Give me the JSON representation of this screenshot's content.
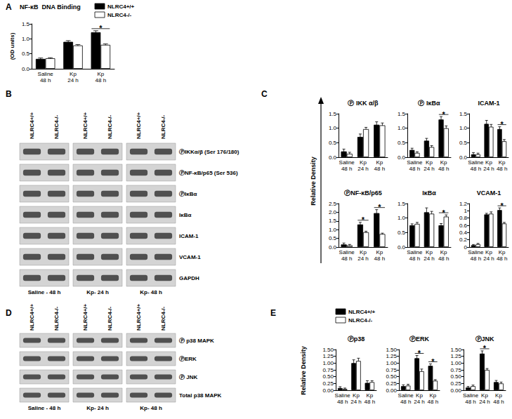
{
  "chart_data": [
    {
      "type": "bar",
      "panel": "A",
      "title": "NF-κB  DNA Binding",
      "ylabel": "(OD units)",
      "categories": [
        "Saline\n48 h",
        "Kp\n24 h",
        "Kp\n48 h"
      ],
      "series": [
        {
          "name": "NLRC4+/+",
          "color": "#000000",
          "values": [
            0.33,
            0.9,
            1.22
          ],
          "errors": [
            0.03,
            0.04,
            0.05
          ]
        },
        {
          "name": "NLRC4-/-",
          "color": "#ffffff",
          "values": [
            0.35,
            0.78,
            0.8
          ],
          "errors": [
            0.02,
            0.03,
            0.03
          ]
        }
      ],
      "ylim": [
        0,
        1.5
      ],
      "yticks": [
        {
          "value": 0,
          "label": "0.0"
        },
        0.5,
        {
          "value": 1,
          "label": "1.0"
        },
        1.5
      ],
      "grid": false,
      "legend": "upper right",
      "annotations": [
        {
          "category": "Kp\n48 h",
          "text": "*"
        }
      ]
    },
    {
      "type": "bar",
      "panel": "C",
      "title": "Ⓟ IKK α/β",
      "categories": [
        "Saline\n48 h",
        "Kp\n24 h",
        "Kp\n48 h"
      ],
      "series": [
        {
          "name": "NLRC4+/+",
          "color": "#000000",
          "values": [
            0.2,
            0.7,
            1.12
          ],
          "errors": [
            0.08,
            0.1,
            0.1
          ]
        },
        {
          "name": "NLRC4-/-",
          "color": "#ffffff",
          "values": [
            0.12,
            0.97,
            1.1
          ],
          "errors": [
            0.05,
            0.06,
            0.08
          ]
        }
      ],
      "ylim": [
        0,
        1.5
      ],
      "yticks": [
        {
          "value": 0,
          "label": "0.0"
        },
        0.5,
        {
          "value": 1,
          "label": "1.0"
        },
        1.5
      ],
      "grid": false,
      "annotations": []
    },
    {
      "type": "bar",
      "panel": "C",
      "title": "Ⓟ IκBα",
      "categories": [
        "Saline\n48 h",
        "Kp\n24 h",
        "Kp\n48 h"
      ],
      "series": [
        {
          "name": "NLRC4+/+",
          "color": "#000000",
          "values": [
            0.25,
            0.57,
            1.3
          ],
          "errors": [
            0.06,
            0.08,
            0.1
          ]
        },
        {
          "name": "NLRC4-/-",
          "color": "#ffffff",
          "values": [
            0.15,
            0.35,
            1.0
          ],
          "errors": [
            0.04,
            0.05,
            0.08
          ]
        }
      ],
      "ylim": [
        0,
        1.5
      ],
      "yticks": [
        {
          "value": 0,
          "label": "0.0"
        },
        0.5,
        {
          "value": 1,
          "label": "1.0"
        },
        1.5
      ],
      "grid": false,
      "annotations": [
        {
          "category": "Kp\n48 h",
          "text": "*"
        }
      ]
    },
    {
      "type": "bar",
      "panel": "C",
      "title": "ICAM-1",
      "categories": [
        "Saline\n48 h",
        "Kp\n24 h",
        "Kp\n48 h"
      ],
      "series": [
        {
          "name": "NLRC4+/+",
          "color": "#000000",
          "values": [
            0.1,
            1.15,
            0.97
          ],
          "errors": [
            0.06,
            0.12,
            0.08
          ]
        },
        {
          "name": "NLRC4-/-",
          "color": "#ffffff",
          "values": [
            0.1,
            1.05,
            0.55
          ],
          "errors": [
            0.04,
            0.08,
            0.06
          ]
        }
      ],
      "ylim": [
        0,
        1.5
      ],
      "yticks": [
        {
          "value": 0,
          "label": "0.0"
        },
        0.5,
        {
          "value": 1,
          "label": "1.0"
        },
        1.5
      ],
      "grid": false,
      "annotations": [
        {
          "category": "Kp\n48 h",
          "text": "*"
        }
      ]
    },
    {
      "type": "bar",
      "panel": "C",
      "title": "ⓅNF-κB/p65",
      "categories": [
        "Saline\n48 h",
        "Kp\n24 h",
        "Kp\n48 h"
      ],
      "series": [
        {
          "name": "NLRC4+/+",
          "color": "#000000",
          "values": [
            0.15,
            1.3,
            1.95
          ],
          "errors": [
            0.08,
            0.12,
            0.2
          ]
        },
        {
          "name": "NLRC4-/-",
          "color": "#ffffff",
          "values": [
            0.1,
            0.85,
            0.75
          ],
          "errors": [
            0.05,
            0.06,
            0.05
          ]
        }
      ],
      "ylim": [
        0,
        2.5
      ],
      "yticks": [
        {
          "value": 0,
          "label": "0.0"
        },
        0.5,
        {
          "value": 1,
          "label": "1.0"
        },
        1.5,
        {
          "value": 2,
          "label": "2.0"
        },
        2.5
      ],
      "grid": false,
      "annotations": [
        {
          "category": "Kp\n24 h",
          "text": "*"
        },
        {
          "category": "Kp\n48 h",
          "text": "*"
        }
      ]
    },
    {
      "type": "bar",
      "panel": "C",
      "title": "IκBα",
      "categories": [
        "Saline\n48 h",
        "Kp\n24 h",
        "Kp\n48 h"
      ],
      "series": [
        {
          "name": "NLRC4+/+",
          "color": "#000000",
          "values": [
            0.75,
            1.2,
            0.75
          ],
          "errors": [
            0.05,
            0.15,
            0.06
          ]
        },
        {
          "name": "NLRC4-/-",
          "color": "#ffffff",
          "values": [
            0.8,
            1.15,
            1.05
          ],
          "errors": [
            0.05,
            0.08,
            0.06
          ]
        }
      ],
      "ylim": [
        0,
        1.5
      ],
      "yticks": [
        {
          "value": 0,
          "label": "0.0"
        },
        0.5,
        {
          "value": 1,
          "label": "1.0"
        },
        1.5
      ],
      "grid": false,
      "annotations": [
        {
          "category": "Kp\n48 h",
          "text": "*"
        }
      ]
    },
    {
      "type": "bar",
      "panel": "C",
      "title": "VCAM-1",
      "categories": [
        "Saline\n48 h",
        "Kp\n24 h",
        "Kp\n48 h"
      ],
      "series": [
        {
          "name": "NLRC4+/+",
          "color": "#000000",
          "values": [
            0.05,
            0.9,
            1.02
          ],
          "errors": [
            0.02,
            0.03,
            0.06
          ]
        },
        {
          "name": "NLRC4-/-",
          "color": "#ffffff",
          "values": [
            0.08,
            0.92,
            0.65
          ],
          "errors": [
            0.02,
            0.05,
            0.03
          ]
        }
      ],
      "ylim": [
        0,
        1.2
      ],
      "yticks": [
        0,
        0.2,
        0.4,
        0.6,
        0.8,
        1,
        1.2
      ],
      "grid": false,
      "annotations": [
        {
          "category": "Kp\n48 h",
          "text": "*"
        }
      ]
    },
    {
      "type": "bar",
      "panel": "E",
      "title": "Ⓟp38",
      "categories": [
        "Saline\n48 h",
        "Kp\n24 h",
        "Kp\n48 h"
      ],
      "series": [
        {
          "name": "NLRC4+/+",
          "color": "#000000",
          "values": [
            0.08,
            1.0,
            0.27
          ],
          "errors": [
            0.05,
            0.12,
            0.08
          ]
        },
        {
          "name": "NLRC4-/-",
          "color": "#ffffff",
          "values": [
            0.05,
            1.08,
            0.3
          ],
          "errors": [
            0.03,
            0.1,
            0.05
          ]
        }
      ],
      "ylim": [
        0,
        1.5
      ],
      "yticks": [
        {
          "value": 0,
          "label": "0.00"
        },
        {
          "value": 0.25,
          "label": "0.25"
        },
        {
          "value": 0.5,
          "label": "0.50"
        },
        {
          "value": 0.75,
          "label": "0.75"
        },
        {
          "value": 1,
          "label": "1.00"
        },
        {
          "value": 1.25,
          "label": "1.25"
        },
        {
          "value": 1.5,
          "label": "1.50"
        }
      ],
      "grid": false,
      "legend": "top",
      "annotations": []
    },
    {
      "type": "bar",
      "panel": "E",
      "title": "ⓅERK",
      "categories": [
        "Saline\n48 h",
        "Kp\n24 h",
        "Kp\n48 h"
      ],
      "series": [
        {
          "name": "NLRC4+/+",
          "color": "#000000",
          "values": [
            0.15,
            1.18,
            0.9
          ],
          "errors": [
            0.05,
            0.1,
            0.07
          ]
        },
        {
          "name": "NLRC4-/-",
          "color": "#ffffff",
          "values": [
            0.17,
            0.7,
            0.35
          ],
          "errors": [
            0.05,
            0.08,
            0.04
          ]
        }
      ],
      "ylim": [
        0,
        1.5
      ],
      "yticks": [
        {
          "value": 0,
          "label": "0.00"
        },
        {
          "value": 0.25,
          "label": "0.25"
        },
        {
          "value": 0.5,
          "label": "0.50"
        },
        {
          "value": 0.75,
          "label": "0.75"
        },
        {
          "value": 1,
          "label": "1.00"
        },
        {
          "value": 1.25,
          "label": "1.25"
        },
        {
          "value": 1.5,
          "label": "1.50"
        }
      ],
      "grid": false,
      "annotations": [
        {
          "category": "Kp\n24 h",
          "text": "*"
        },
        {
          "category": "Kp\n48 h",
          "text": "*"
        }
      ]
    },
    {
      "type": "bar",
      "panel": "E",
      "title": "ⓅJNK",
      "categories": [
        "Saline\n48 h",
        "Kp\n24 h",
        "Kp\n48 h"
      ],
      "series": [
        {
          "name": "NLRC4+/+",
          "color": "#000000",
          "values": [
            0.1,
            1.35,
            0.3
          ],
          "errors": [
            0.04,
            0.1,
            0.06
          ]
        },
        {
          "name": "NLRC4-/-",
          "color": "#ffffff",
          "values": [
            0.15,
            0.75,
            0.25
          ],
          "errors": [
            0.04,
            0.05,
            0.05
          ]
        }
      ],
      "ylim": [
        0,
        1.5
      ],
      "yticks": [
        {
          "value": 0,
          "label": "0.00"
        },
        {
          "value": 0.25,
          "label": "0.25"
        },
        {
          "value": 0.5,
          "label": "0.50"
        },
        {
          "value": 0.75,
          "label": "0.75"
        },
        {
          "value": 1,
          "label": "1.00"
        },
        {
          "value": 1.25,
          "label": "1.25"
        },
        {
          "value": 1.5,
          "label": "1.50"
        }
      ],
      "grid": false,
      "annotations": [
        {
          "category": "Kp\n24 h",
          "text": "*"
        }
      ]
    }
  ],
  "panels": [
    {
      "letter": "A"
    },
    {
      "letter": "B",
      "blot": {
        "lanes": [
          "NLRC4+/+",
          "NLRC4-/-",
          "NLRC4+/+",
          "NLRC4-/-",
          "NLRC4+/+",
          "NLRC4-/-"
        ],
        "groups": [
          "Saline - 48 h",
          "Kp- 24 h",
          "Kp- 48 h"
        ],
        "rows": [
          "ⓅIKKα/β (Ser 176/180)",
          "ⓅNF-κB/p65 (Ser 536)",
          "ⓅIκBα",
          "IκBα",
          "ICAM-1",
          "VCAM-1",
          "GAPDH"
        ]
      }
    },
    {
      "letter": "C",
      "ylabel": "Relative Density"
    },
    {
      "letter": "D",
      "blot": {
        "lanes": [
          "NLRC4+/+",
          "NLRC4-/-",
          "NLRC4+/+",
          "NLRC4-/-",
          "NLRC4+/+",
          "NLRC4-/-"
        ],
        "groups": [
          "Saline - 48 h",
          "Kp- 24 h",
          "Kp- 48 h"
        ],
        "rows": [
          "Ⓟ p38 MAPK",
          "ⓅERK",
          "Ⓟ JNK",
          "Total p38 MAPK"
        ]
      }
    },
    {
      "letter": "E",
      "ylabel": "Relative Density"
    }
  ]
}
